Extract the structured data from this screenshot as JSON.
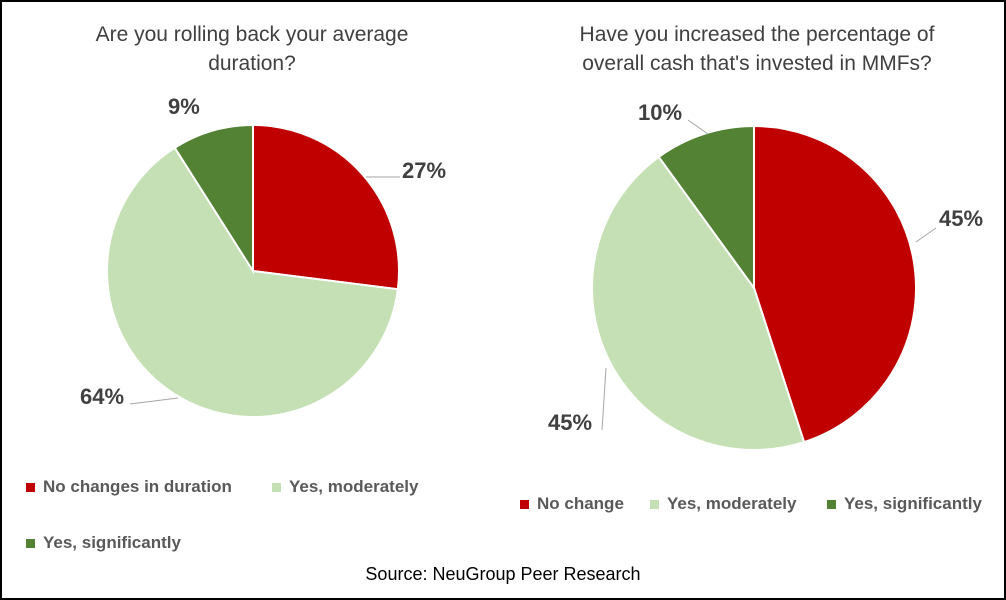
{
  "colors": {
    "no_change": "#C00000",
    "moderately": "#C5E0B4",
    "significantly": "#548235"
  },
  "chart_data": [
    {
      "type": "pie",
      "title": "Are you rolling back your average duration?",
      "title_lines": [
        "Are you rolling back your average",
        "duration?"
      ],
      "categories": [
        "No changes in duration",
        "Yes, moderately",
        "Yes, significantly"
      ],
      "values": [
        27,
        64,
        9
      ],
      "labels": [
        "27%",
        "64%",
        "9%"
      ],
      "legend_position": "bottom"
    },
    {
      "type": "pie",
      "title": "Have you increased the percentage of overall cash that's invested in MMFs?",
      "title_lines": [
        "Have you increased the percentage of",
        "overall cash that's invested in MMFs?"
      ],
      "categories": [
        "No change",
        "Yes, moderately",
        "Yes, significantly"
      ],
      "values": [
        45,
        45,
        10
      ],
      "labels": [
        "45%",
        "45%",
        "10%"
      ],
      "legend_position": "bottom"
    }
  ],
  "source": "Source: NeuGroup Peer Research"
}
